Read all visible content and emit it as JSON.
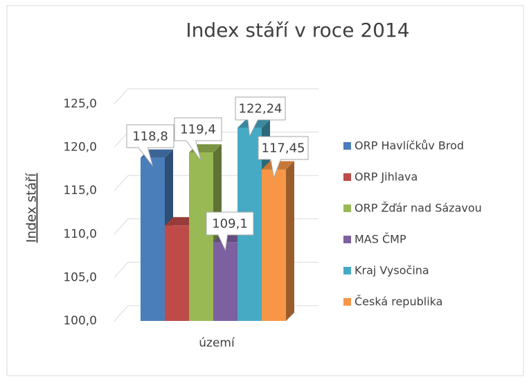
{
  "chart_data": {
    "type": "bar3d",
    "title": "Index stáří v roce 2014",
    "y_label": "Index stáří",
    "categories": [
      "území"
    ],
    "series": [
      {
        "name": "ORP Havlíčkův Brod",
        "color": "#4a7ebb",
        "values": [
          118.8
        ],
        "value_labels": [
          "118,8"
        ]
      },
      {
        "name": "ORP Jihlava",
        "color": "#be4b48",
        "values": [
          111.0
        ],
        "value_labels": [
          null
        ]
      },
      {
        "name": "ORP Žďár nad Sázavou",
        "color": "#98b954",
        "values": [
          119.4
        ],
        "value_labels": [
          "119,4"
        ]
      },
      {
        "name": "MAS ČMP",
        "color": "#7d60a0",
        "values": [
          109.1
        ],
        "value_labels": [
          "109,1"
        ]
      },
      {
        "name": "Kraj Vysočina",
        "color": "#46aac5",
        "values": [
          122.24
        ],
        "value_labels": [
          "122,24"
        ]
      },
      {
        "name": "Česká republika",
        "color": "#f79646",
        "values": [
          117.45
        ],
        "value_labels": [
          "117,45"
        ]
      }
    ],
    "ylim": [
      100,
      125
    ],
    "yticks": [
      {
        "value": 100,
        "label": "100,0"
      },
      {
        "value": 105,
        "label": "105,0"
      },
      {
        "value": 110,
        "label": "110,0"
      },
      {
        "value": 115,
        "label": "115,0"
      },
      {
        "value": 120,
        "label": "120,0"
      },
      {
        "value": 125,
        "label": "125,0"
      }
    ],
    "grid": true,
    "legend": "right"
  }
}
